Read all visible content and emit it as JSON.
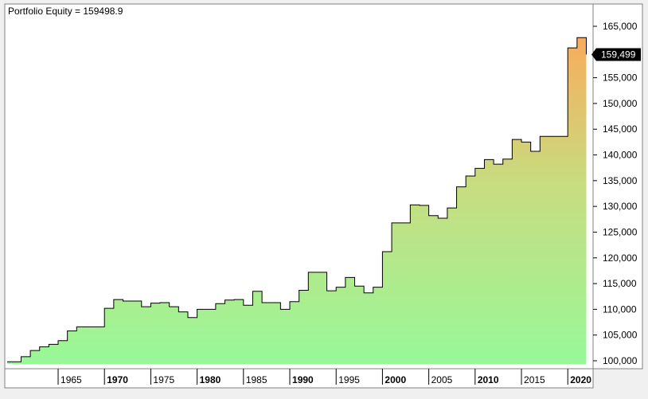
{
  "title": "Portfolio Equity = 159498.9",
  "last_value_label": "159,499",
  "colors": {
    "area_bottom": "#98f898",
    "area_mid": "#c8dc80",
    "area_top": "#f8ac5c",
    "line": "#000000",
    "badge_bg": "#000000",
    "badge_text": "#ffffff",
    "plot_bg": "#ffffff",
    "frame": "#808080"
  },
  "chart_data": {
    "type": "area",
    "title": "Portfolio Equity = 159498.9",
    "xlabel": "",
    "ylabel": "",
    "x_ticks": [
      {
        "label": "1965",
        "bold": false
      },
      {
        "label": "1970",
        "bold": true
      },
      {
        "label": "1975",
        "bold": false
      },
      {
        "label": "1980",
        "bold": true
      },
      {
        "label": "1985",
        "bold": false
      },
      {
        "label": "1990",
        "bold": true
      },
      {
        "label": "1995",
        "bold": false
      },
      {
        "label": "2000",
        "bold": true
      },
      {
        "label": "2005",
        "bold": false
      },
      {
        "label": "2010",
        "bold": true
      },
      {
        "label": "2015",
        "bold": false
      },
      {
        "label": "2020",
        "bold": true
      }
    ],
    "y_ticks": [
      "100,000",
      "105,000",
      "110,000",
      "115,000",
      "120,000",
      "125,000",
      "130,000",
      "135,000",
      "140,000",
      "145,000",
      "150,000",
      "155,000",
      "160,000",
      "165,000"
    ],
    "y_tick_values": [
      100000,
      105000,
      110000,
      115000,
      120000,
      125000,
      130000,
      135000,
      140000,
      145000,
      150000,
      155000,
      160000,
      165000
    ],
    "ylim": [
      99000,
      166500
    ],
    "xlim": [
      1959.5,
      2022.3
    ],
    "grid": false,
    "series": [
      {
        "x": [
          1959.5,
          1961,
          1962,
          1963,
          1964,
          1965,
          1966,
          1967,
          1968,
          1969,
          1970,
          1971,
          1972,
          1973,
          1974,
          1975,
          1976,
          1977,
          1978,
          1979,
          1980,
          1981,
          1982,
          1983,
          1984,
          1985,
          1986,
          1987,
          1988,
          1989,
          1990,
          1991,
          1992,
          1993,
          1994,
          1995,
          1996,
          1997,
          1998,
          1999,
          2000,
          2001,
          2002,
          2003,
          2004,
          2005,
          2006,
          2007,
          2008,
          2009,
          2010,
          2011,
          2012,
          2013,
          2014,
          2015,
          2016,
          2017,
          2018,
          2019,
          2020,
          2021,
          2022
        ],
        "y": [
          99800,
          100800,
          102000,
          102700,
          103200,
          103900,
          105800,
          106600,
          106600,
          106600,
          110200,
          111900,
          111600,
          111600,
          110500,
          111200,
          111300,
          110500,
          109500,
          108400,
          110000,
          110000,
          111100,
          111800,
          111900,
          110800,
          113500,
          111300,
          111300,
          110000,
          111500,
          113700,
          117200,
          117200,
          113600,
          114300,
          116200,
          114500,
          113200,
          114300,
          121200,
          126800,
          126800,
          130300,
          130200,
          128200,
          127700,
          129700,
          133800,
          135900,
          137400,
          139100,
          138200,
          139200,
          143000,
          142500,
          140700,
          143600,
          143600,
          143600,
          160800,
          162800,
          159499
        ]
      }
    ]
  }
}
